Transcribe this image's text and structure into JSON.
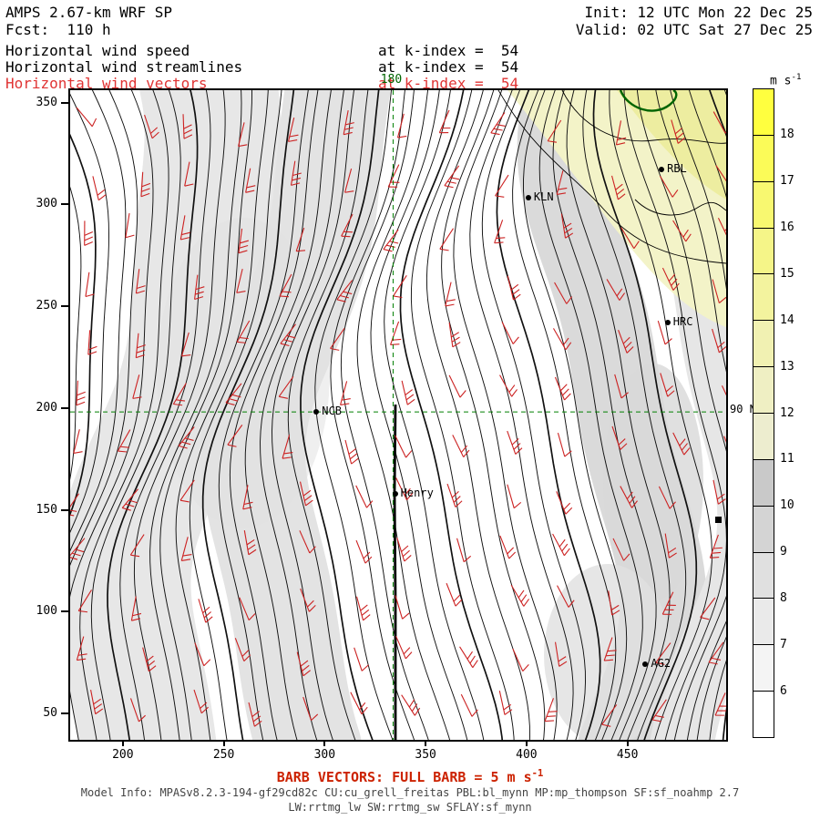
{
  "header": {
    "title": "AMPS 2.67-km WRF SP",
    "fcst_label": "Fcst:  110 h",
    "init_label": "Init: 12 UTC Mon 22 Dec 25",
    "valid_label": "Valid: 02 UTC Sat 27 Dec 25",
    "vector_color": "#e03434",
    "fields": [
      {
        "label": "Horizontal wind speed",
        "at": "at k-index =  54"
      },
      {
        "label": "Horizontal wind streamlines",
        "at": "at k-index =  54"
      },
      {
        "label": "Horizontal wind vectors",
        "at": "at k-index =  54"
      }
    ]
  },
  "chart_data": {
    "type": "heatmap",
    "title": "Horizontal wind speed, streamlines and vectors at k-index = 54",
    "layers": [
      "wind speed shading",
      "streamlines",
      "wind barb vectors",
      "station markers"
    ],
    "x_ticks": [
      200,
      250,
      300,
      350,
      400,
      450
    ],
    "y_ticks": [
      50,
      100,
      150,
      200,
      250,
      300,
      350
    ],
    "x_range": [
      173,
      498
    ],
    "y_range": [
      38,
      357
    ],
    "grid": false,
    "streamline_color": "#111111",
    "barb_color": "#cc2222",
    "crosshair": {
      "x": 333,
      "y": 199,
      "x_label": "180",
      "y_label": "90 N",
      "color": "#008000",
      "label_color": "#006400"
    },
    "colorbar": {
      "unit_main": "m s",
      "unit_sup": "-1",
      "ticks": [
        6,
        7,
        8,
        9,
        10,
        11,
        12,
        13,
        14,
        15,
        16,
        17,
        18
      ],
      "range": [
        5,
        19
      ],
      "segment_colors_bottom_to_top": [
        "#ffffff",
        "#f4f4f4",
        "#eaeaea",
        "#e0e0e0",
        "#d4d4d4",
        "#c9c9c9",
        "#ededcf",
        "#efefc3",
        "#f1f1b2",
        "#f3f39e",
        "#f5f588",
        "#f8f870",
        "#fbfb58",
        "#ffff3f"
      ]
    },
    "stations": [
      {
        "name": "RBL",
        "x": 466,
        "y": 318,
        "marker": "circle"
      },
      {
        "name": "KLN",
        "x": 400,
        "y": 304,
        "marker": "circle"
      },
      {
        "name": "HRC",
        "x": 469,
        "y": 243,
        "marker": "circle"
      },
      {
        "name": "NCB",
        "x": 295,
        "y": 199,
        "marker": "circle"
      },
      {
        "name": "Henry",
        "x": 334,
        "y": 159,
        "marker": "circle"
      },
      {
        "name": "AG2",
        "x": 458,
        "y": 75,
        "marker": "circle"
      },
      {
        "name": "",
        "x": 494,
        "y": 146,
        "marker": "square"
      }
    ]
  },
  "footer": {
    "barb_note_prefix": "BARB VECTORS:  FULL BARB = 5 m s",
    "barb_note_sup": "-1",
    "barb_note_color": "#cc2200",
    "model_info": "Model Info: MPASv8.2.3-194-gf29cd82c CU:cu_grell_freitas PBL:bl_mynn MP:mp_thompson SF:sf_noahmp 2.7",
    "physics": "LW:rrtmg_lw SW:rrtmg_sw SFLAY:sf_mynn"
  }
}
